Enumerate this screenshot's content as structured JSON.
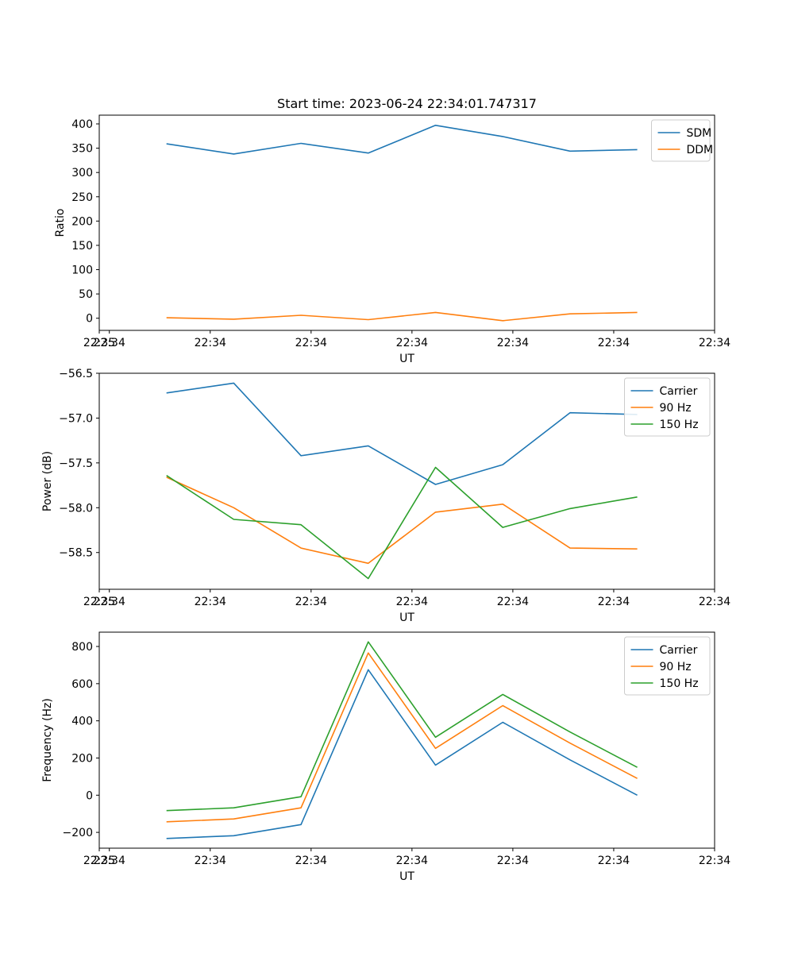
{
  "figure_title": "Start time: 2023-06-24 22:34:01.747317",
  "chart_data": [
    {
      "type": "line",
      "title": "Start time: 2023-06-24 22:34:01.747317",
      "xlabel": "UT",
      "ylabel": "Ratio",
      "x_ticks": [
        "22:34",
        "22:34",
        "22:34",
        "22:34",
        "22:34",
        "22:34",
        "22:34",
        "22:35"
      ],
      "x": [
        1,
        2,
        3,
        4,
        5,
        6,
        7,
        8
      ],
      "xlim": [
        0,
        9.15
      ],
      "ylim": [
        -25,
        418
      ],
      "y_ticks": [
        0,
        50,
        100,
        150,
        200,
        250,
        300,
        350,
        400
      ],
      "legend_position": "top-right",
      "series": [
        {
          "name": "SDM",
          "color": "#1f77b4",
          "values": [
            359,
            338,
            360,
            340,
            397,
            374,
            344,
            347
          ]
        },
        {
          "name": "DDM",
          "color": "#ff7f0e",
          "values": [
            1,
            -2,
            6,
            -3,
            12,
            -5,
            9,
            12
          ]
        }
      ]
    },
    {
      "type": "line",
      "xlabel": "UT",
      "ylabel": "Power (dB)",
      "x_ticks": [
        "22:34",
        "22:34",
        "22:34",
        "22:34",
        "22:34",
        "22:34",
        "22:34",
        "22:35"
      ],
      "x": [
        1,
        2,
        3,
        4,
        5,
        6,
        7,
        8
      ],
      "xlim": [
        0,
        9.15
      ],
      "ylim": [
        -58.91,
        -56.5
      ],
      "y_ticks": [
        -58.5,
        -58.0,
        -57.5,
        -57.0,
        -56.5
      ],
      "y_tick_labels": [
        "−58.5",
        "−58.0",
        "−57.5",
        "−57.0",
        "−56.5"
      ],
      "legend_position": "top-right",
      "series": [
        {
          "name": "Carrier",
          "color": "#1f77b4",
          "values": [
            -56.72,
            -56.61,
            -57.42,
            -57.31,
            -57.74,
            -57.52,
            -56.94,
            -56.96
          ]
        },
        {
          "name": "90 Hz",
          "color": "#ff7f0e",
          "values": [
            -57.66,
            -58.0,
            -58.45,
            -58.62,
            -58.05,
            -57.96,
            -58.45,
            -58.46
          ]
        },
        {
          "name": "150 Hz",
          "color": "#2ca02c",
          "values": [
            -57.64,
            -58.13,
            -58.19,
            -58.79,
            -57.55,
            -58.22,
            -58.01,
            -57.88
          ]
        }
      ]
    },
    {
      "type": "line",
      "xlabel": "UT",
      "ylabel": "Frequency (Hz)",
      "x_ticks": [
        "22:34",
        "22:34",
        "22:34",
        "22:34",
        "22:34",
        "22:34",
        "22:34",
        "22:35"
      ],
      "x": [
        1,
        2,
        3,
        4,
        5,
        6,
        7,
        8
      ],
      "xlim": [
        0,
        9.15
      ],
      "ylim": [
        -285,
        877
      ],
      "y_ticks": [
        -200,
        0,
        200,
        400,
        600,
        800
      ],
      "y_tick_labels": [
        "−200",
        "0",
        "200",
        "400",
        "600",
        "800"
      ],
      "legend_position": "top-right",
      "series": [
        {
          "name": "Carrier",
          "color": "#1f77b4",
          "values": [
            -233,
            -218,
            -158,
            675,
            162,
            392,
            190,
            0
          ]
        },
        {
          "name": "90 Hz",
          "color": "#ff7f0e",
          "values": [
            -143,
            -128,
            -68,
            765,
            252,
            482,
            280,
            90
          ]
        },
        {
          "name": "150 Hz",
          "color": "#2ca02c",
          "values": [
            -83,
            -68,
            -8,
            825,
            312,
            542,
            340,
            150
          ]
        }
      ]
    }
  ]
}
